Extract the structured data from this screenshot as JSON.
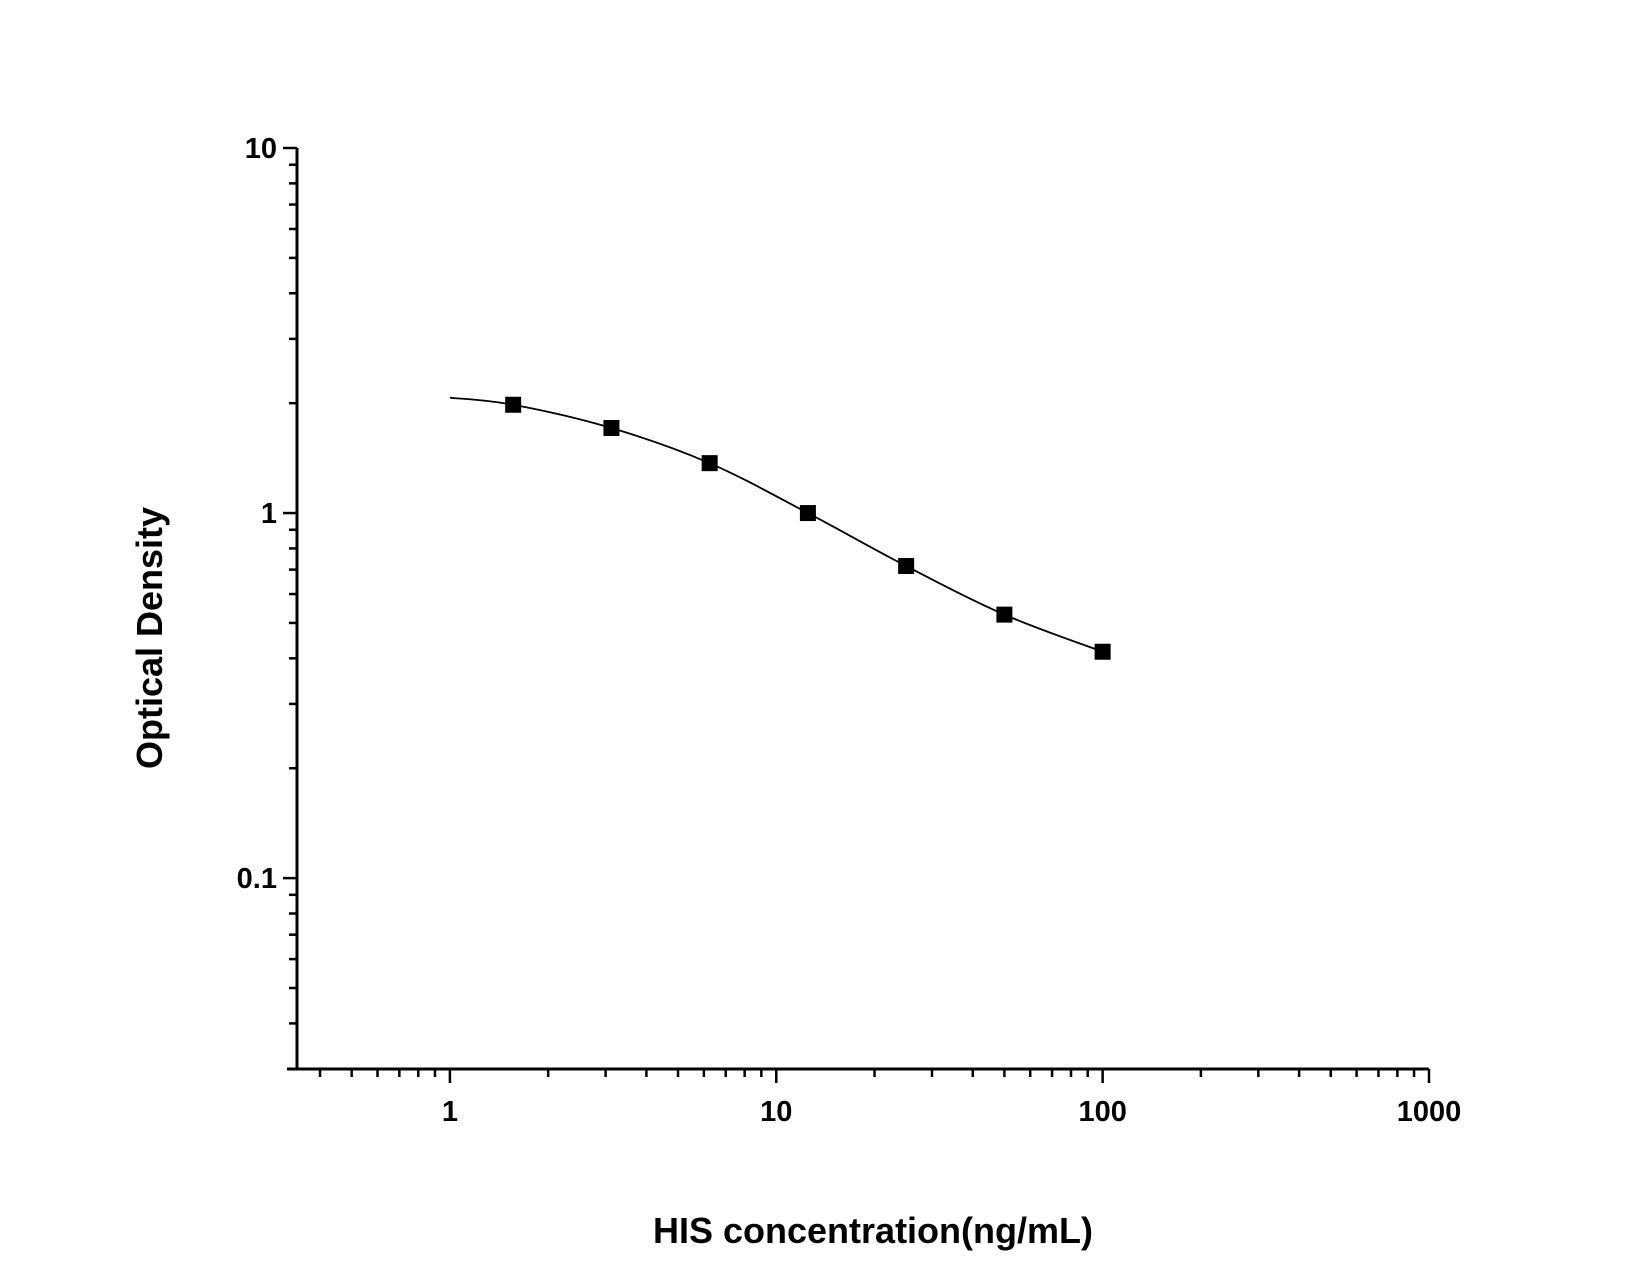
{
  "chart_data": {
    "type": "scatter",
    "title": "",
    "xlabel": "HIS concentration(ng/mL)",
    "ylabel": "Optical Density",
    "x_scale": "log",
    "y_scale": "log",
    "xlim": [
      0.34,
      1000
    ],
    "ylim": [
      0.03,
      10
    ],
    "x_ticks": [
      1,
      10,
      100,
      1000
    ],
    "x_tick_labels": [
      "1",
      "10",
      "100",
      "1000"
    ],
    "y_ticks": [
      0.1,
      1,
      10
    ],
    "y_tick_labels": [
      "0.1",
      "1",
      "10"
    ],
    "grid": false,
    "legend": "none",
    "series": [
      {
        "marker": "square",
        "color": "#000000",
        "x": [
          1.5625,
          3.125,
          6.25,
          12.5,
          25,
          50,
          100
        ],
        "y": [
          1.98,
          1.71,
          1.37,
          1.0,
          0.716,
          0.527,
          0.417
        ]
      },
      {
        "line": "fitted-curve",
        "color": "#000000",
        "x": [
          1,
          1.5625,
          3.125,
          6.25,
          12.5,
          25,
          50,
          100
        ],
        "y": [
          2.07,
          1.98,
          1.71,
          1.37,
          1.0,
          0.716,
          0.527,
          0.417
        ]
      }
    ]
  }
}
